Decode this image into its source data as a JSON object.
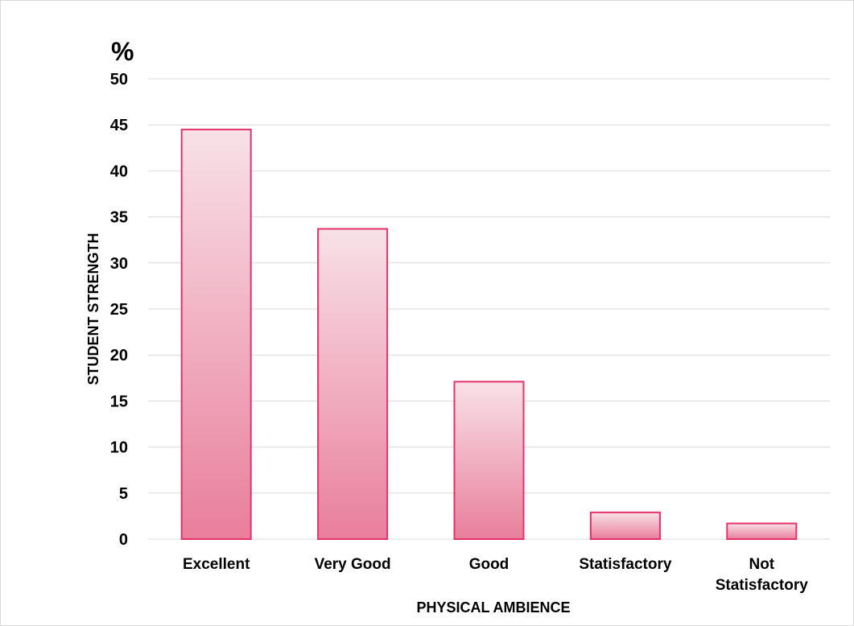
{
  "chart_data": {
    "type": "bar",
    "categories": [
      "Excellent",
      "Very Good",
      "Good",
      "Statisfactory",
      "Not Statisfactory"
    ],
    "category_label_lines": [
      [
        "Excellent"
      ],
      [
        "Very Good"
      ],
      [
        "Good"
      ],
      [
        "Statisfactory"
      ],
      [
        "Not",
        "Statisfactory"
      ]
    ],
    "values": [
      44.5,
      33.7,
      17.1,
      2.9,
      1.7
    ],
    "title": "",
    "xlabel": "PHYSICAL AMBIENCE",
    "ylabel": "STUDENT STRENGTH",
    "y_unit_label": "%",
    "ylim": [
      0,
      50
    ],
    "yticks": [
      0,
      5,
      10,
      15,
      20,
      25,
      30,
      35,
      40,
      45,
      50
    ],
    "grid": true,
    "legend": "none",
    "colors": {
      "bar_fill_top": "#f8e1e8",
      "bar_fill_bottom": "#e97e9c",
      "bar_stroke": "#e4336a",
      "gridline": "#d9d9d9"
    }
  }
}
